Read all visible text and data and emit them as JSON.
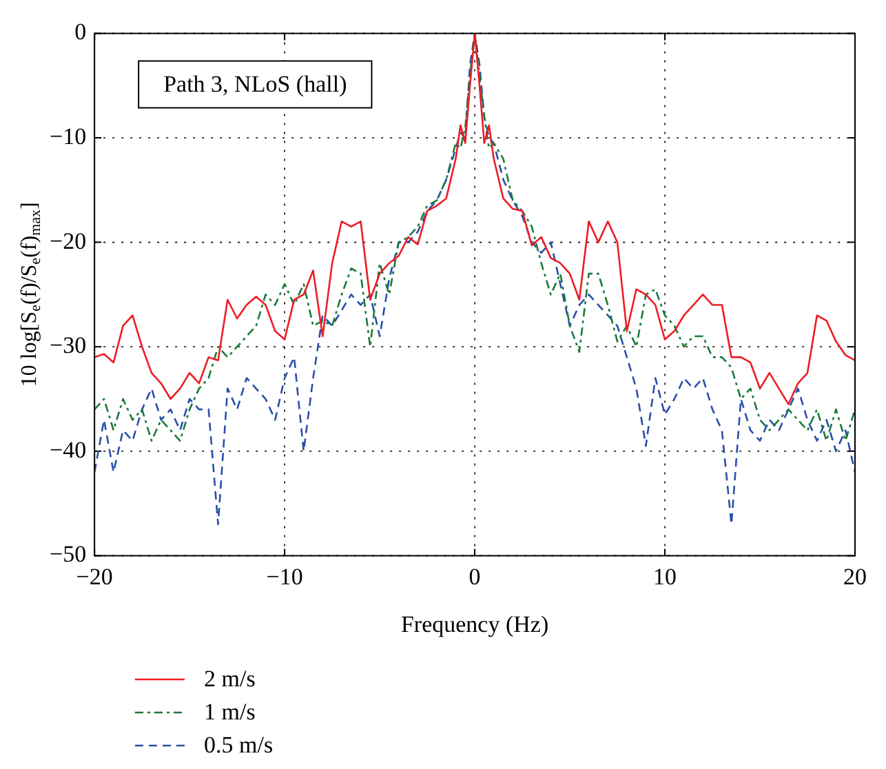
{
  "chart_data": {
    "type": "line",
    "xlabel": "Frequency (Hz)",
    "ylabel": "10 log[S$_{e}$(f)/S$_{e}$(f)$_{max}$]",
    "annotations": [
      "Path 3, NLoS (hall)"
    ],
    "x": [
      -20,
      -19.5,
      -19,
      -18.5,
      -18,
      -17.5,
      -17,
      -16.5,
      -16,
      -15.5,
      -15,
      -14.5,
      -14,
      -13.5,
      -13,
      -12.5,
      -12,
      -11.5,
      -11,
      -10.5,
      -10,
      -9.5,
      -9,
      -8.5,
      -8,
      -7.5,
      -7,
      -6.5,
      -6,
      -5.5,
      -5,
      -4.5,
      -4,
      -3.5,
      -3,
      -2.5,
      -2,
      -1.5,
      -1,
      -0.75,
      -0.5,
      -0.25,
      0,
      0.25,
      0.5,
      0.75,
      1,
      1.5,
      2,
      2.5,
      3,
      3.5,
      4,
      4.5,
      5,
      5.5,
      6,
      6.5,
      7,
      7.5,
      8,
      8.5,
      9,
      9.5,
      10,
      10.5,
      11,
      11.5,
      12,
      12.5,
      13,
      13.5,
      14,
      14.5,
      15,
      15.5,
      16,
      16.5,
      17,
      17.5,
      18,
      18.5,
      19,
      19.5,
      20
    ],
    "series": [
      {
        "name": "2 m/s",
        "color": "#ee1c25",
        "line_style": "solid",
        "values": [
          -31,
          -30.7,
          -31.5,
          -28,
          -27,
          -30,
          -32.5,
          -33.5,
          -35,
          -34,
          -32.5,
          -33.5,
          -31,
          -31.3,
          -25.5,
          -27.3,
          -26,
          -25.2,
          -26,
          -28.5,
          -29.3,
          -25.5,
          -25,
          -22.7,
          -29,
          -22,
          -18,
          -18.5,
          -18,
          -25.5,
          -23,
          -22,
          -21.3,
          -19.5,
          -20.2,
          -17,
          -16.5,
          -15.8,
          -12,
          -8.8,
          -10.5,
          -5,
          0,
          -5,
          -10.5,
          -8.8,
          -12,
          -15.8,
          -16.8,
          -17,
          -20.3,
          -19.5,
          -21.5,
          -22,
          -23,
          -25.5,
          -18,
          -20,
          -18,
          -20,
          -28.5,
          -24.5,
          -25,
          -26,
          -29.3,
          -28.5,
          -27,
          -26,
          -25,
          -26,
          -26,
          -31,
          -31,
          -31.5,
          -34,
          -32.5,
          -34,
          -35.5,
          -33.5,
          -32.5,
          -27,
          -27.5,
          -29.5,
          -30.8,
          -31.3
        ]
      },
      {
        "name": "1 m/s",
        "color": "#1a7a3a",
        "line_style": "dashdot",
        "values": [
          -36,
          -35,
          -38,
          -35,
          -37,
          -36,
          -39,
          -37,
          -38,
          -39,
          -36,
          -34,
          -33,
          -30,
          -31,
          -30,
          -29,
          -28,
          -25,
          -26,
          -24,
          -26,
          -24,
          -28,
          -27.5,
          -28,
          -25,
          -22.5,
          -23,
          -30,
          -22,
          -25,
          -20,
          -19.5,
          -18.5,
          -16.5,
          -16,
          -14,
          -10.5,
          -11,
          -9,
          -4,
          0,
          -4,
          -8,
          -11,
          -10.5,
          -12,
          -16,
          -17,
          -18.5,
          -22,
          -25,
          -23,
          -28,
          -30.5,
          -23,
          -23,
          -26,
          -29.5,
          -28,
          -30,
          -25,
          -24.5,
          -27,
          -28,
          -30,
          -29,
          -29,
          -31,
          -31,
          -32,
          -35,
          -34,
          -37,
          -38,
          -37,
          -36,
          -37,
          -38,
          -36,
          -39,
          -36,
          -39,
          -36
        ]
      },
      {
        "name": "0.5 m/s",
        "color": "#2a4fa8",
        "line_style": "dashed",
        "values": [
          -42,
          -37,
          -42,
          -38,
          -39,
          -36,
          -34,
          -37,
          -36,
          -38,
          -35,
          -36,
          -36,
          -47,
          -34,
          -36,
          -33,
          -34,
          -35,
          -37,
          -33,
          -31,
          -40,
          -33,
          -27,
          -28,
          -26.5,
          -25,
          -26,
          -25,
          -29,
          -23.5,
          -20,
          -20,
          -19,
          -17,
          -16,
          -14,
          -11,
          -9.5,
          -10,
          -3,
          0,
          -3,
          -8,
          -10,
          -10.5,
          -14,
          -16,
          -17.5,
          -20,
          -21,
          -20,
          -24,
          -28,
          -26,
          -25,
          -26,
          -27,
          -28,
          -31,
          -34,
          -39.5,
          -33,
          -36.5,
          -35,
          -33,
          -34,
          -33,
          -36,
          -38,
          -47,
          -35,
          -38,
          -39,
          -37,
          -38,
          -36,
          -34,
          -37,
          -39,
          -37,
          -40,
          -38,
          -42
        ]
      }
    ],
    "xlim": [
      -20,
      20
    ],
    "ylim": [
      -50,
      0
    ],
    "xticks": [
      -20,
      -10,
      0,
      10,
      20
    ],
    "yticks": [
      -50,
      -40,
      -30,
      -20,
      -10,
      0
    ],
    "grid": true,
    "legend": "bottom"
  }
}
